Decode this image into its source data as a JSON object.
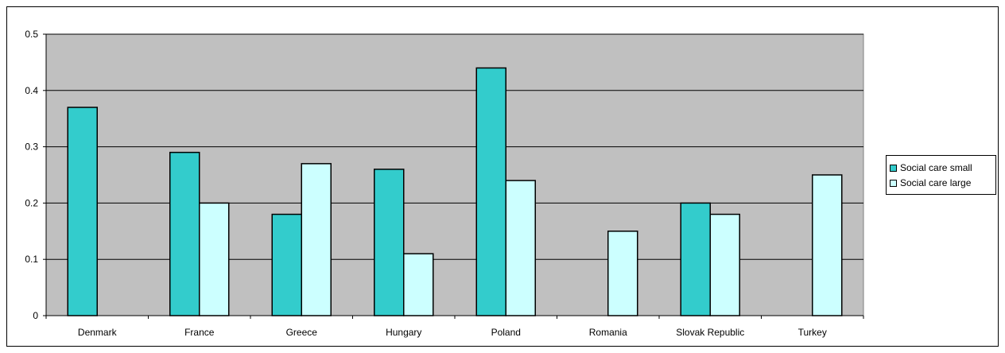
{
  "chart_data": {
    "type": "bar",
    "title": "",
    "xlabel": "",
    "ylabel": "",
    "categories": [
      "Denmark",
      "France",
      "Greece",
      "Hungary",
      "Poland",
      "Romania",
      "Slovak Republic",
      "Turkey"
    ],
    "series": [
      {
        "name": "Social care small",
        "color": "#33CCCC",
        "values": [
          0.37,
          0.29,
          0.18,
          0.26,
          0.44,
          null,
          0.2,
          null
        ]
      },
      {
        "name": "Social care large",
        "color": "#CCFFFF",
        "values": [
          null,
          0.2,
          0.27,
          0.11,
          0.24,
          0.15,
          0.18,
          0.25
        ]
      }
    ],
    "ylim": [
      0,
      0.5
    ],
    "yticks": [
      "0",
      "0.1",
      "0.2",
      "0.3",
      "0.4",
      "0.5"
    ],
    "grid": true,
    "plot_background": "#C0C0C0",
    "legend_position": "right"
  }
}
